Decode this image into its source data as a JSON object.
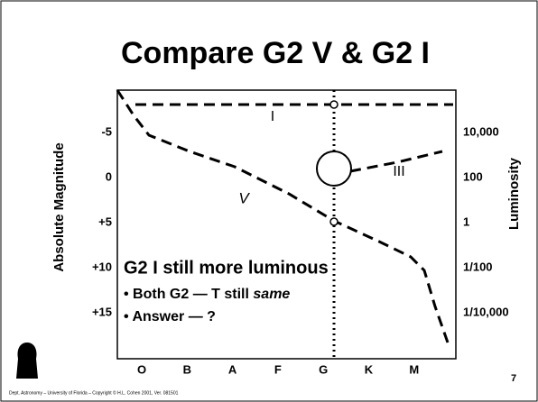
{
  "slide": {
    "title": "Compare G2 V & G2 I",
    "y_axis_label": "Absolute Magnitude",
    "y2_axis_label": "Luminosity",
    "left_ticks": [
      "-5",
      "0",
      "+5",
      "+10",
      "+15"
    ],
    "right_ticks": [
      "10,000",
      "100",
      "1",
      "1/100",
      "1/10,000"
    ],
    "bottom_ticks": [
      "O",
      "B",
      "A",
      "F",
      "G",
      "K",
      "M"
    ],
    "curve_labels": [
      "I",
      "III",
      "V"
    ],
    "heading": "G2 I still more luminous",
    "bullets": [
      "Both G2 — T still",
      "Answer — ?"
    ],
    "bullet_emphasis": "same",
    "footer": "Dept. Astronomy – University of Florida – Copyright © H.L. Cohen 2001, Ver. 081501",
    "page_number": "7"
  }
}
